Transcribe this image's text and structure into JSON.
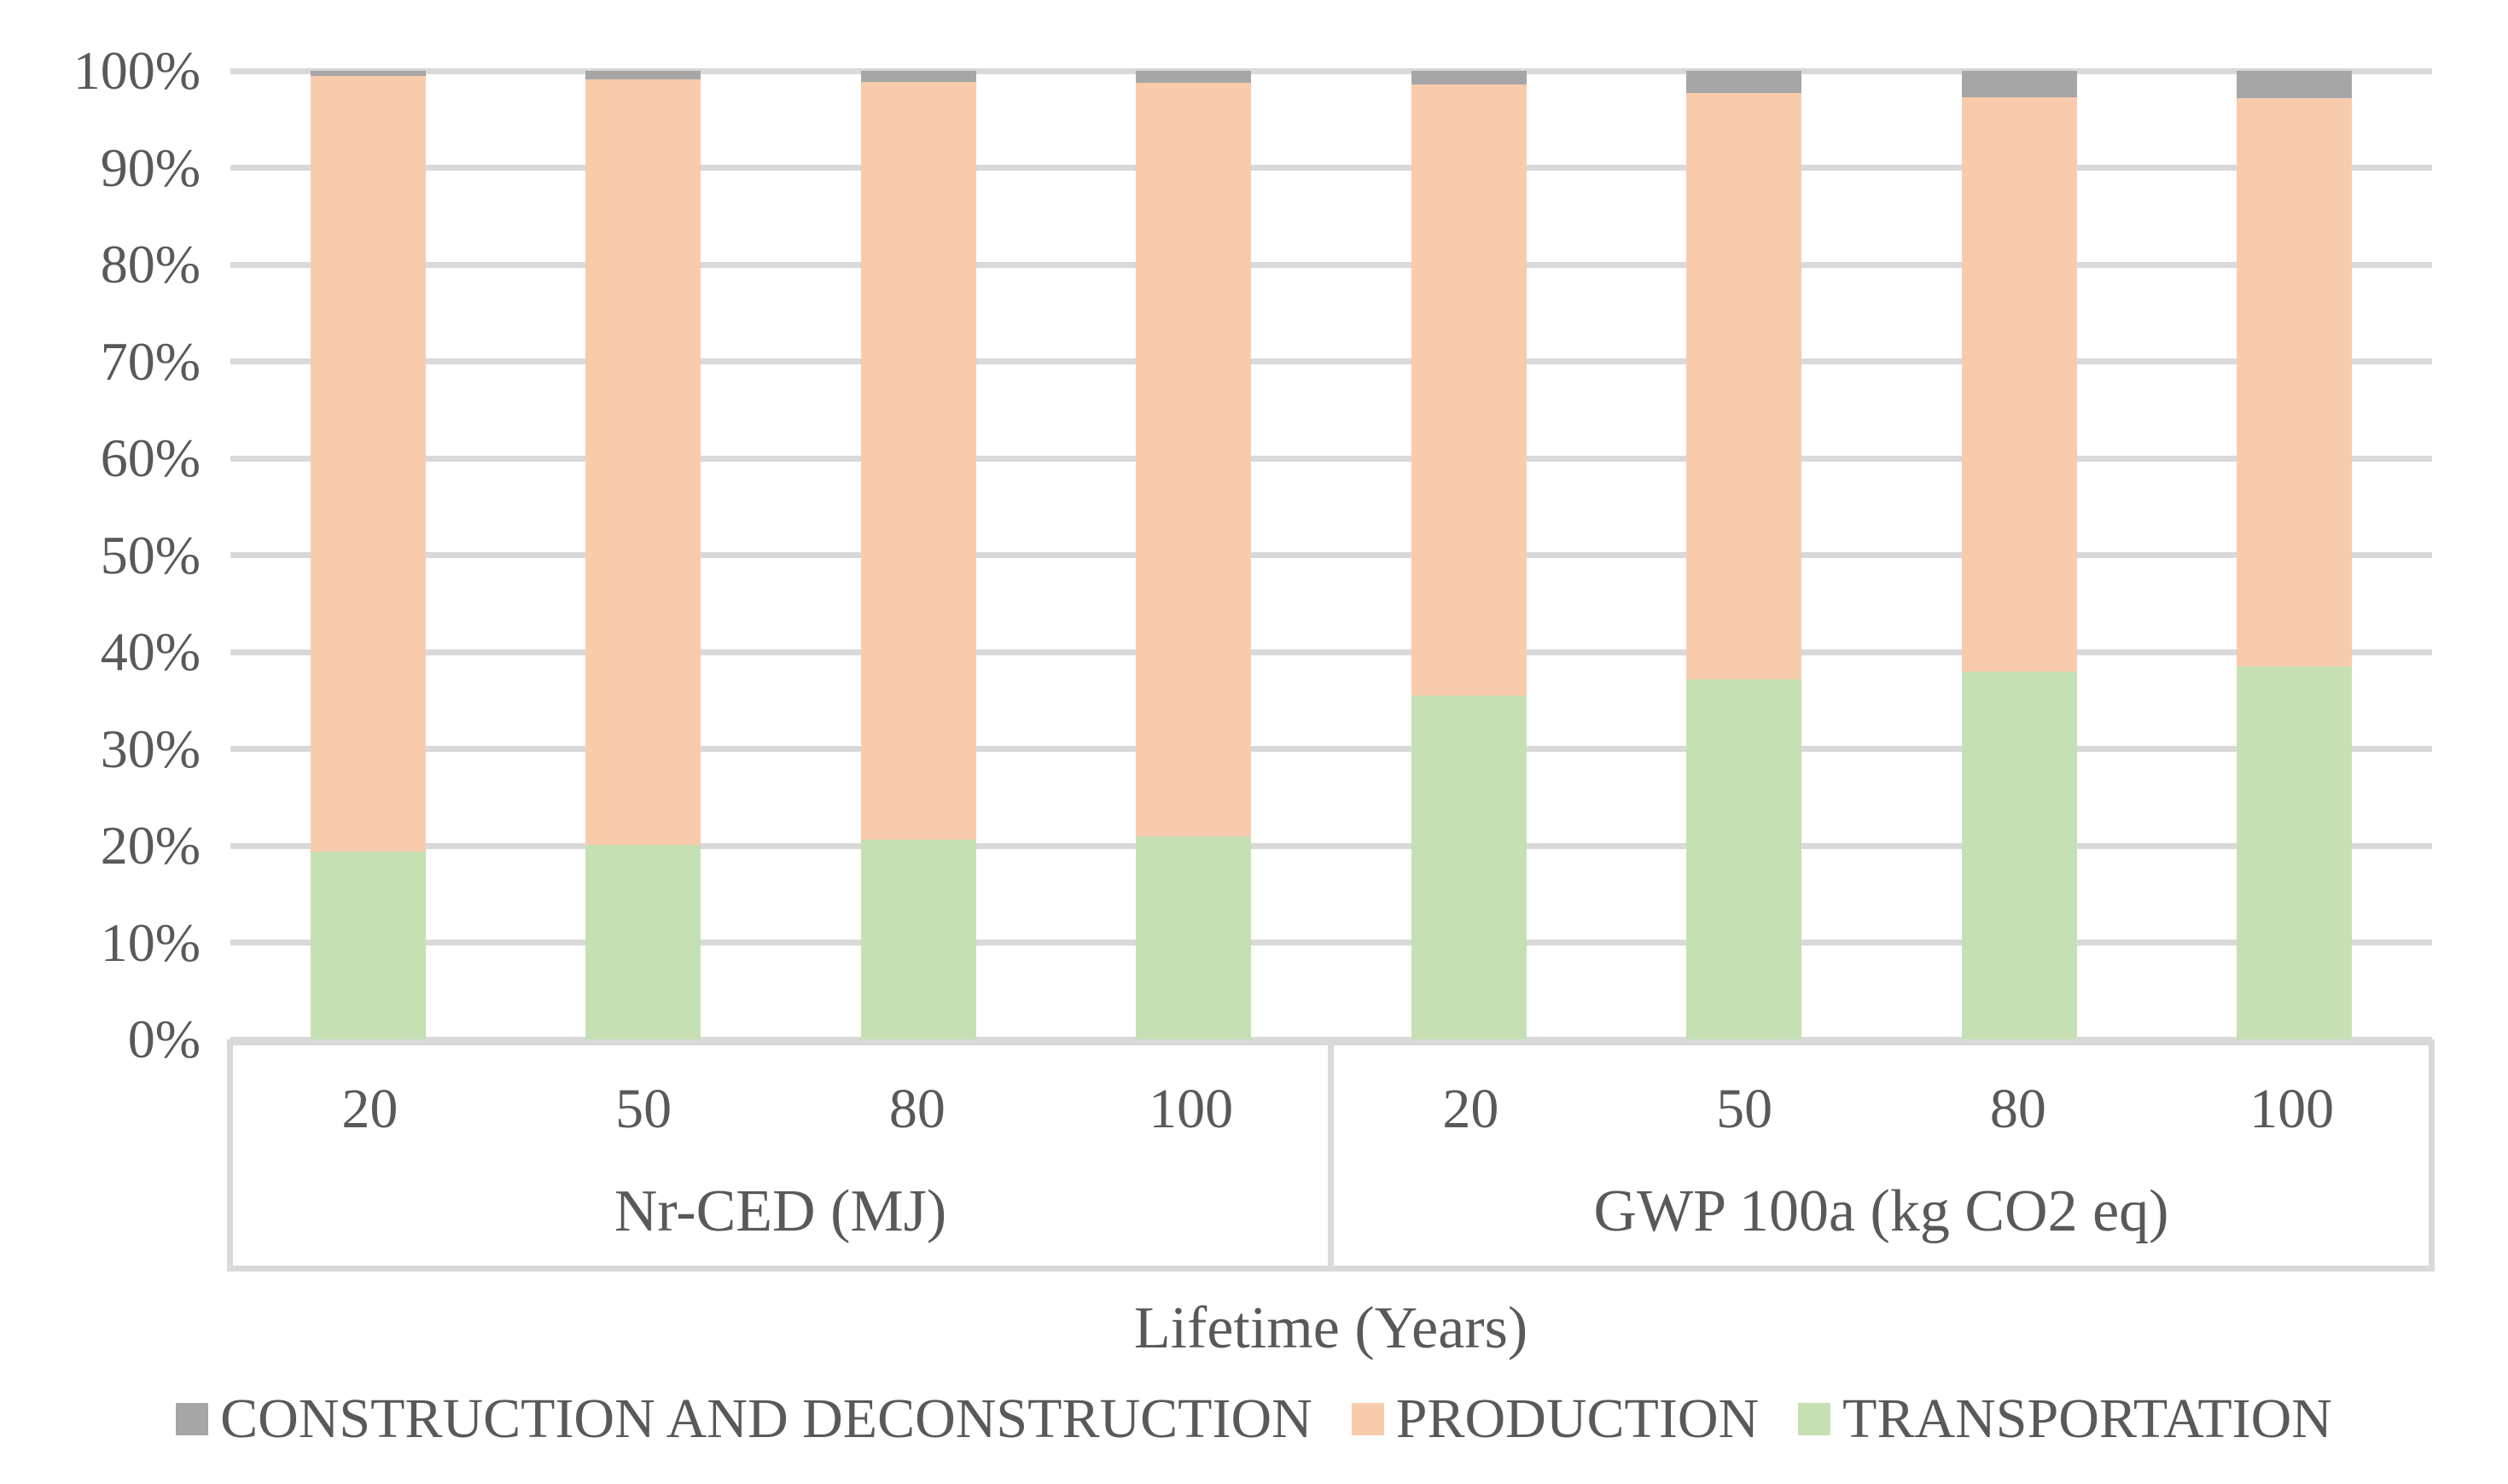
{
  "chart_data": {
    "type": "bar",
    "subtype": "100%-stacked-column",
    "title": "",
    "xlabel": "Lifetime (Years)",
    "ylabel": "",
    "ylim": [
      0,
      100
    ],
    "grid": true,
    "legend_position": "bottom",
    "yticks": [
      "100%",
      "90%",
      "80%",
      "70%",
      "60%",
      "50%",
      "40%",
      "30%",
      "20%",
      "10%",
      "0%"
    ],
    "groups": [
      {
        "label": "Nr-CED (MJ)",
        "categories": [
          "20",
          "50",
          "80",
          "100"
        ]
      },
      {
        "label": "GWP 100a (kg CO2 eq)",
        "categories": [
          "20",
          "50",
          "80",
          "100"
        ]
      }
    ],
    "categories": [
      "20",
      "50",
      "80",
      "100",
      "20",
      "50",
      "80",
      "100"
    ],
    "series": [
      {
        "name": "CONSTRUCTION AND DECONSTRUCTION",
        "color": "#a6a6a6",
        "stack_position": "top",
        "values": [
          0.5,
          0.9,
          1.1,
          1.2,
          1.4,
          2.3,
          2.7,
          2.8
        ]
      },
      {
        "name": "PRODUCTION",
        "color": "#f8cbad",
        "stack_position": "middle",
        "values": [
          80.1,
          79.0,
          78.3,
          77.8,
          63.1,
          60.5,
          59.3,
          58.7
        ]
      },
      {
        "name": "TRANSPORTATION",
        "color": "#c6e0b4",
        "stack_position": "bottom",
        "values": [
          19.4,
          20.1,
          20.6,
          21.0,
          35.5,
          37.2,
          38.0,
          38.5
        ]
      }
    ],
    "colors": {
      "gridline": "#d9d9d9",
      "axis_text": "#595959",
      "background": "#ffffff"
    }
  }
}
